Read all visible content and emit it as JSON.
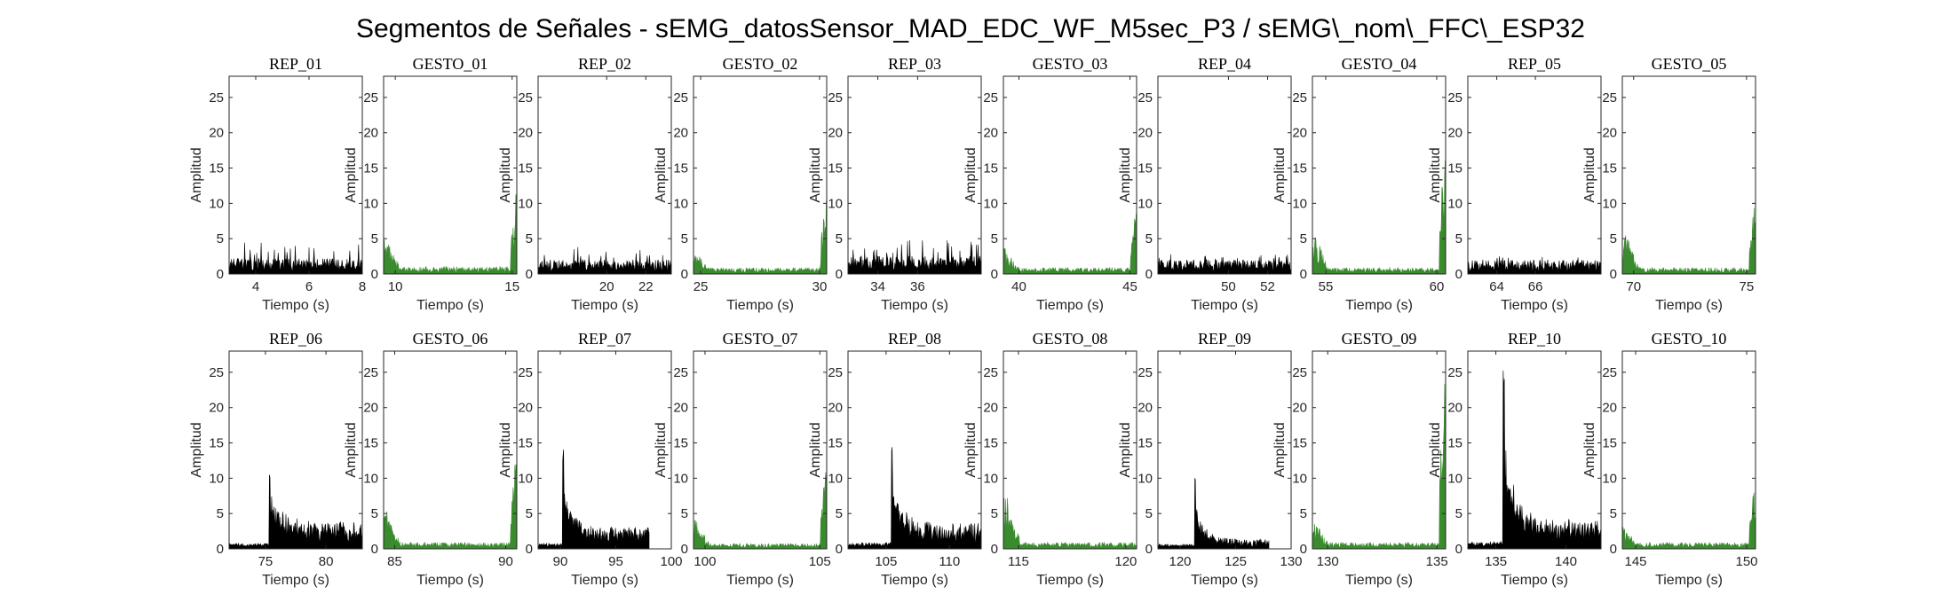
{
  "figure_title": "Segmentos de Señales - sEMG_datosSensor_MAD_EDC_WF_M5sec_P3 / sEMG\\_nom\\_FFC\\_ESP32",
  "colors": {
    "rep": "#000000",
    "gesto": "#3a8a2e",
    "axis": "#262626"
  },
  "chart_data": [
    {
      "type": "area",
      "title": "REP_01",
      "xlabel": "Tiempo (s)",
      "ylabel": "Amplitud",
      "xlim": [
        3,
        8
      ],
      "ylim": [
        0,
        28
      ],
      "xticks": [
        4,
        6,
        8
      ],
      "yticks": [
        0,
        5,
        10,
        15,
        20,
        25
      ],
      "color": "#000000",
      "profile": "rep_flat",
      "level": 1.3,
      "peak": 4.5
    },
    {
      "type": "area",
      "title": "GESTO_01",
      "xlabel": "Tiempo (s)",
      "ylabel": "Amplitud",
      "xlim": [
        9.5,
        15.2
      ],
      "ylim": [
        0,
        28
      ],
      "xticks": [
        10,
        15
      ],
      "yticks": [
        0,
        5,
        10,
        15,
        20,
        25
      ],
      "color": "#3a8a2e",
      "profile": "gesto",
      "level": 0.7,
      "peak_start": 6,
      "peak_end": 13
    },
    {
      "type": "area",
      "title": "REP_02",
      "xlabel": "Tiempo (s)",
      "ylabel": "Amplitud",
      "xlim": [
        16.5,
        23.3
      ],
      "ylim": [
        0,
        28
      ],
      "xticks": [
        20,
        22
      ],
      "yticks": [
        0,
        5,
        10,
        15,
        20,
        25
      ],
      "color": "#000000",
      "profile": "rep_flat",
      "level": 1.2,
      "peak": 3.8
    },
    {
      "type": "area",
      "title": "GESTO_02",
      "xlabel": "Tiempo (s)",
      "ylabel": "Amplitud",
      "xlim": [
        24.7,
        30.3
      ],
      "ylim": [
        0,
        28
      ],
      "xticks": [
        25,
        30
      ],
      "yticks": [
        0,
        5,
        10,
        15,
        20,
        25
      ],
      "color": "#3a8a2e",
      "profile": "gesto",
      "level": 0.6,
      "peak_start": 3.5,
      "peak_end": 11.5
    },
    {
      "type": "area",
      "title": "REP_03",
      "xlabel": "Tiempo (s)",
      "ylabel": "Amplitud",
      "xlim": [
        32.5,
        39.2
      ],
      "ylim": [
        0,
        28
      ],
      "xticks": [
        34,
        36
      ],
      "yticks": [
        0,
        5,
        10,
        15,
        20,
        25
      ],
      "color": "#000000",
      "profile": "rep_flat",
      "level": 1.5,
      "peak": 5
    },
    {
      "type": "area",
      "title": "GESTO_03",
      "xlabel": "Tiempo (s)",
      "ylabel": "Amplitud",
      "xlim": [
        39.3,
        45.3
      ],
      "ylim": [
        0,
        28
      ],
      "xticks": [
        40,
        45
      ],
      "yticks": [
        0,
        5,
        10,
        15,
        20,
        25
      ],
      "color": "#3a8a2e",
      "profile": "gesto",
      "level": 0.6,
      "peak_start": 4,
      "peak_end": 9.5
    },
    {
      "type": "area",
      "title": "REP_04",
      "xlabel": "Tiempo (s)",
      "ylabel": "Amplitud",
      "xlim": [
        46.4,
        53.2
      ],
      "ylim": [
        0,
        28
      ],
      "xticks": [
        50,
        52
      ],
      "yticks": [
        0,
        5,
        10,
        15,
        20,
        25
      ],
      "color": "#000000",
      "profile": "rep_flat",
      "level": 1.2,
      "peak": 2.8
    },
    {
      "type": "area",
      "title": "GESTO_04",
      "xlabel": "Tiempo (s)",
      "ylabel": "Amplitud",
      "xlim": [
        54.4,
        60.4
      ],
      "ylim": [
        0,
        28
      ],
      "xticks": [
        55,
        60
      ],
      "yticks": [
        0,
        5,
        10,
        15,
        20,
        25
      ],
      "color": "#3a8a2e",
      "profile": "gesto",
      "level": 0.6,
      "peak_start": 6.5,
      "peak_end": 20.5
    },
    {
      "type": "area",
      "title": "REP_05",
      "xlabel": "Tiempo (s)",
      "ylabel": "Amplitud",
      "xlim": [
        62.5,
        69.4
      ],
      "ylim": [
        0,
        28
      ],
      "xticks": [
        64,
        66
      ],
      "yticks": [
        0,
        5,
        10,
        15,
        20,
        25
      ],
      "color": "#000000",
      "profile": "rep_flat",
      "level": 1.2,
      "peak": 2.5
    },
    {
      "type": "area",
      "title": "GESTO_05",
      "xlabel": "Tiempo (s)",
      "ylabel": "Amplitud",
      "xlim": [
        69.5,
        75.4
      ],
      "ylim": [
        0,
        28
      ],
      "xticks": [
        70,
        75
      ],
      "yticks": [
        0,
        5,
        10,
        15,
        20,
        25
      ],
      "color": "#3a8a2e",
      "profile": "gesto",
      "level": 0.6,
      "peak_start": 7,
      "peak_end": 10.5
    },
    {
      "type": "area",
      "title": "REP_06",
      "xlabel": "Tiempo (s)",
      "ylabel": "Amplitud",
      "xlim": [
        72,
        83
      ],
      "ylim": [
        0,
        28
      ],
      "xticks": [
        75,
        80
      ],
      "yticks": [
        0,
        5,
        10,
        15,
        20,
        25
      ],
      "color": "#000000",
      "profile": "rep_burst",
      "level": 0.6,
      "burst_at": 75.3,
      "peak": 10.8,
      "after": 2.8
    },
    {
      "type": "area",
      "title": "GESTO_06",
      "xlabel": "Tiempo (s)",
      "ylabel": "Amplitud",
      "xlim": [
        84.5,
        90.5
      ],
      "ylim": [
        0,
        28
      ],
      "xticks": [
        85,
        90
      ],
      "yticks": [
        0,
        5,
        10,
        15,
        20,
        25
      ],
      "color": "#3a8a2e",
      "profile": "gesto",
      "level": 0.6,
      "peak_start": 6.5,
      "peak_end": 14.5
    },
    {
      "type": "area",
      "title": "REP_07",
      "xlabel": "Tiempo (s)",
      "ylabel": "Amplitud",
      "xlim": [
        88,
        100
      ],
      "ylim": [
        0,
        28
      ],
      "xticks": [
        90,
        95,
        100
      ],
      "yticks": [
        0,
        5,
        10,
        15,
        20,
        25
      ],
      "color": "#000000",
      "profile": "rep_burst",
      "level": 0.6,
      "burst_at": 90.2,
      "peak": 14.5,
      "after": 2.2,
      "end": 98
    },
    {
      "type": "area",
      "title": "GESTO_07",
      "xlabel": "Tiempo (s)",
      "ylabel": "Amplitud",
      "xlim": [
        99.5,
        105.3
      ],
      "ylim": [
        0,
        28
      ],
      "xticks": [
        100,
        105
      ],
      "yticks": [
        0,
        5,
        10,
        15,
        20,
        25
      ],
      "color": "#3a8a2e",
      "profile": "gesto",
      "level": 0.5,
      "peak_start": 4.5,
      "peak_end": 13.5
    },
    {
      "type": "area",
      "title": "REP_08",
      "xlabel": "Tiempo (s)",
      "ylabel": "Amplitud",
      "xlim": [
        102,
        112.5
      ],
      "ylim": [
        0,
        28
      ],
      "xticks": [
        105,
        110
      ],
      "yticks": [
        0,
        5,
        10,
        15,
        20,
        25
      ],
      "color": "#000000",
      "profile": "rep_burst",
      "level": 0.7,
      "burst_at": 105.4,
      "peak": 15.5,
      "after": 2.6
    },
    {
      "type": "area",
      "title": "GESTO_08",
      "xlabel": "Tiempo (s)",
      "ylabel": "Amplitud",
      "xlim": [
        114.3,
        120.5
      ],
      "ylim": [
        0,
        28
      ],
      "xticks": [
        115,
        120
      ],
      "yticks": [
        0,
        5,
        10,
        15,
        20,
        25
      ],
      "color": "#3a8a2e",
      "profile": "gesto_start",
      "level": 0.6,
      "peak_start": 9
    },
    {
      "type": "area",
      "title": "REP_09",
      "xlabel": "Tiempo (s)",
      "ylabel": "Amplitud",
      "xlim": [
        118,
        130
      ],
      "ylim": [
        0,
        28
      ],
      "xticks": [
        120,
        125,
        130
      ],
      "yticks": [
        0,
        5,
        10,
        15,
        20,
        25
      ],
      "color": "#000000",
      "profile": "rep_burst",
      "level": 0.5,
      "burst_at": 121.3,
      "peak": 10.8,
      "after": 1.0,
      "end": 128
    },
    {
      "type": "area",
      "title": "GESTO_09",
      "xlabel": "Tiempo (s)",
      "ylabel": "Amplitud",
      "xlim": [
        129.3,
        135.4
      ],
      "ylim": [
        0,
        28
      ],
      "xticks": [
        130,
        135
      ],
      "yticks": [
        0,
        5,
        10,
        15,
        20,
        25
      ],
      "color": "#3a8a2e",
      "profile": "gesto",
      "level": 0.6,
      "peak_start": 4.5,
      "peak_end": 25.5
    },
    {
      "type": "area",
      "title": "REP_10",
      "xlabel": "Tiempo (s)",
      "ylabel": "Amplitud",
      "xlim": [
        133,
        142.5
      ],
      "ylim": [
        0,
        28
      ],
      "xticks": [
        135,
        140
      ],
      "yticks": [
        0,
        5,
        10,
        15,
        20,
        25
      ],
      "color": "#000000",
      "profile": "rep_burst",
      "level": 0.8,
      "burst_at": 135.5,
      "peak": 25.8,
      "after": 3.0
    },
    {
      "type": "area",
      "title": "GESTO_10",
      "xlabel": "Tiempo (s)",
      "ylabel": "Amplitud",
      "xlim": [
        144.4,
        150.4
      ],
      "ylim": [
        0,
        28
      ],
      "xticks": [
        145,
        150
      ],
      "yticks": [
        0,
        5,
        10,
        15,
        20,
        25
      ],
      "color": "#3a8a2e",
      "profile": "gesto",
      "level": 0.6,
      "peak_start": 3.5,
      "peak_end": 10
    }
  ]
}
